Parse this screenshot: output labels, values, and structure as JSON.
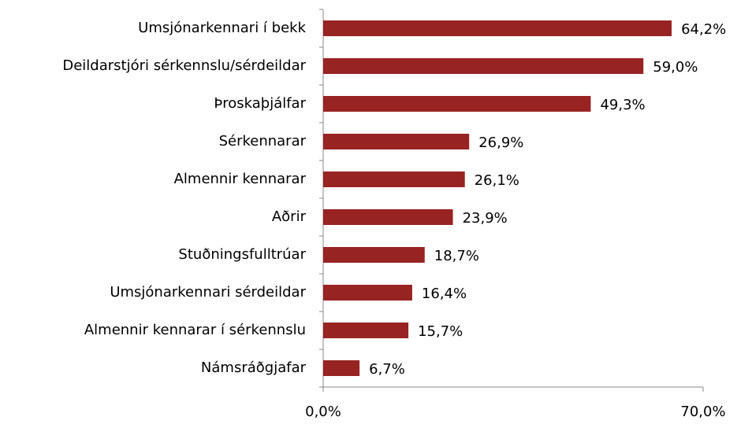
{
  "chart_data": {
    "type": "bar",
    "orientation": "horizontal",
    "categories": [
      "Umsjónarkennari í bekk",
      "Deildarstjóri sérkennslu/sérdeildar",
      "Þroskaþjálfar",
      "Sérkennarar",
      "Almennir kennarar",
      "Aðrir",
      "Stuðningsfulltrúar",
      "Umsjónarkennari sérdeildar",
      "Almennir kennarar í sérkennslu",
      "Námsráðgjafar"
    ],
    "values": [
      64.2,
      59.0,
      49.3,
      26.9,
      26.1,
      23.9,
      18.7,
      16.4,
      15.7,
      6.7
    ],
    "value_labels": [
      "64,2%",
      "59,0%",
      "49,3%",
      "26,9%",
      "26,1%",
      "23,9%",
      "18,7%",
      "16,4%",
      "15,7%",
      "6,7%"
    ],
    "color": "#982323",
    "xlim": [
      0,
      70
    ],
    "xticks": [
      {
        "value": 0,
        "label": "0,0%"
      },
      {
        "value": 70,
        "label": "70,0%"
      }
    ],
    "grid": false
  }
}
